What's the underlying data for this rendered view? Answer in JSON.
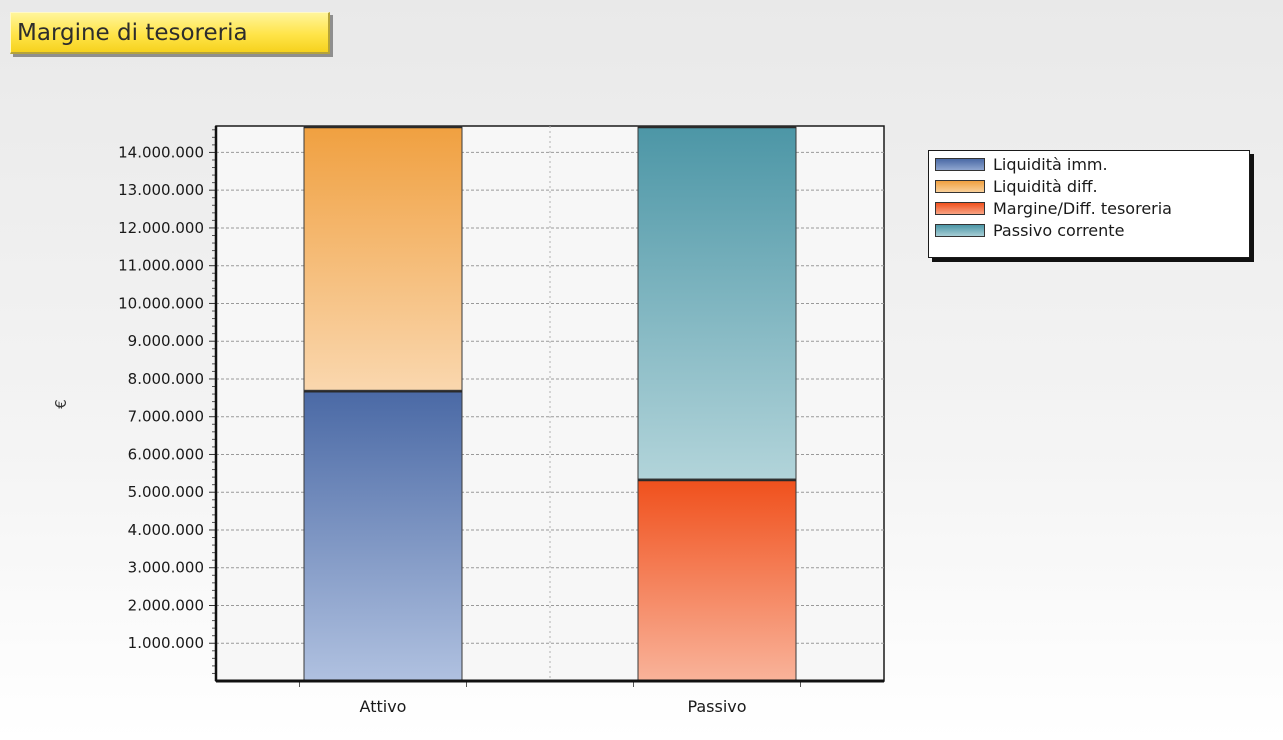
{
  "header": {
    "title": "Margine di tesoreria"
  },
  "colors": {
    "liquidita_imm": "#4a69a5",
    "liquidita_diff": "#f0a040",
    "margine": "#f0501c",
    "passivo_corrente": "#4c96a6"
  },
  "chart_data": {
    "type": "bar",
    "stacked": true,
    "title": "Margine di tesoreria",
    "xlabel": "",
    "ylabel": "€",
    "categories": [
      "Attivo",
      "Passivo"
    ],
    "series": [
      {
        "name": "Liquidità imm.",
        "values": [
          7700000,
          0
        ],
        "color": "#4a69a5"
      },
      {
        "name": "Liquidità diff.",
        "values": [
          7000000,
          0
        ],
        "color": "#f0a040"
      },
      {
        "name": "Margine/Diff. tesoreria",
        "values": [
          0,
          5350000
        ],
        "color": "#f0501c"
      },
      {
        "name": "Passivo corrente",
        "values": [
          0,
          9350000
        ],
        "color": "#4c96a6"
      }
    ],
    "ylim": [
      0,
      14700000
    ],
    "yticks": [
      1000000,
      2000000,
      3000000,
      4000000,
      5000000,
      6000000,
      7000000,
      8000000,
      9000000,
      10000000,
      11000000,
      12000000,
      13000000,
      14000000
    ],
    "ytick_labels": [
      "1.000.000",
      "2.000.000",
      "3.000.000",
      "4.000.000",
      "5.000.000",
      "6.000.000",
      "7.000.000",
      "8.000.000",
      "9.000.000",
      "10.000.000",
      "11.000.000",
      "12.000.000",
      "13.000.000",
      "14.000.000"
    ],
    "grid": true,
    "legend_position": "top-right"
  },
  "legend": {
    "items": [
      {
        "label": "Liquidità imm.",
        "color": "#4a69a5"
      },
      {
        "label": "Liquidità diff.",
        "color": "#f0a040"
      },
      {
        "label": "Margine/Diff. tesoreria",
        "color": "#f0501c"
      },
      {
        "label": "Passivo corrente",
        "color": "#4c96a6"
      }
    ]
  }
}
